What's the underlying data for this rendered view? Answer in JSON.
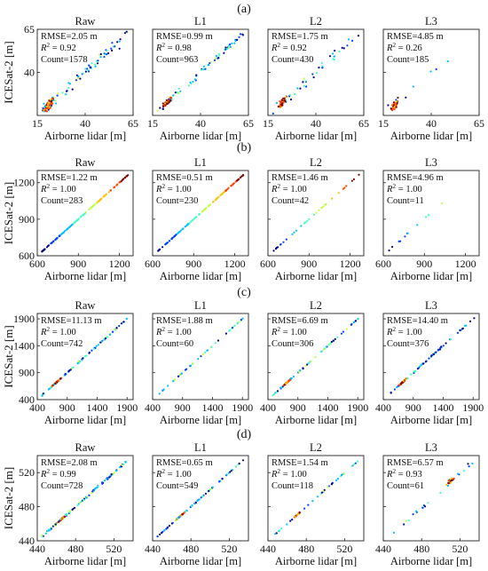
{
  "figure": {
    "rows": [
      {
        "label": "(a)",
        "ylabel": "ICESat-2 [m]",
        "xlabel": "Airborne lidar [m]",
        "xlim": [
          15,
          65
        ],
        "ylim": [
          15,
          65
        ],
        "xticks": [
          "15",
          "40",
          "65"
        ],
        "yticks": [
          "40",
          "65"
        ],
        "panels": [
          {
            "title": "Raw",
            "stats": {
              "rmse": "RMSE=2.05 m",
              "r2_value": " = 0.92",
              "count": "Count=1578"
            }
          },
          {
            "title": "L1",
            "stats": {
              "rmse": "RMSE=0.99 m",
              "r2_value": " = 0.98",
              "count": "Count=963"
            }
          },
          {
            "title": "L2",
            "stats": {
              "rmse": "RMSE=1.75 m",
              "r2_value": " = 0.92",
              "count": "Count=430"
            }
          },
          {
            "title": "L3",
            "stats": {
              "rmse": "RMSE=4.85 m",
              "r2_value": " = 0.26",
              "count": "Count=185"
            }
          }
        ]
      },
      {
        "label": "(b)",
        "ylabel": "ICESat-2 [m]",
        "xlabel": "Airborne lidar [m]",
        "xlim": [
          600,
          1300
        ],
        "ylim": [
          600,
          1300
        ],
        "xticks": [
          "600",
          "900",
          "1200"
        ],
        "yticks": [
          "600",
          "900",
          "1200"
        ],
        "panels": [
          {
            "title": "Raw",
            "stats": {
              "rmse": "RMSE=1.22 m",
              "r2_value": " = 1.00",
              "count": "Count=283"
            }
          },
          {
            "title": "L1",
            "stats": {
              "rmse": "RMSE=0.51 m",
              "r2_value": " = 1.00",
              "count": "Count=230"
            }
          },
          {
            "title": "L2",
            "stats": {
              "rmse": "RMSE=1.46 m",
              "r2_value": " = 1.00",
              "count": "Count=42"
            }
          },
          {
            "title": "L3",
            "stats": {
              "rmse": "RMSE=4.96 m",
              "r2_value": " = 1.00",
              "count": "Count=11"
            }
          }
        ]
      },
      {
        "label": "(c)",
        "ylabel": "ICESat-2 [m]",
        "xlabel": "Airborne lidar [m]",
        "xlim": [
          400,
          2000
        ],
        "ylim": [
          400,
          2000
        ],
        "xticks": [
          "400",
          "900",
          "1400",
          "1900"
        ],
        "yticks": [
          "400",
          "900",
          "1400",
          "1900"
        ],
        "panels": [
          {
            "title": "Raw",
            "stats": {
              "rmse": "RMSE=11.13 m",
              "r2_value": " = 1.00",
              "count": "Count=742"
            }
          },
          {
            "title": "L1",
            "stats": {
              "rmse": "RMSE=1.88 m",
              "r2_value": " = 1.00",
              "count": "Count=60"
            }
          },
          {
            "title": "L2",
            "stats": {
              "rmse": "RMSE=6.69 m",
              "r2_value": " = 1.00",
              "count": "Count=306"
            }
          },
          {
            "title": "L3",
            "stats": {
              "rmse": "RMSE=14.40 m",
              "r2_value": " = 1.00",
              "count": "Count=376"
            }
          }
        ]
      },
      {
        "label": "(d)",
        "ylabel": "ICESat-2 [m]",
        "xlabel": "Airborne lidar [m]",
        "xlim": [
          440,
          540
        ],
        "ylim": [
          440,
          540
        ],
        "xticks": [
          "440",
          "480",
          "520"
        ],
        "yticks": [
          "440",
          "480",
          "520"
        ],
        "panels": [
          {
            "title": "Raw",
            "stats": {
              "rmse": "RMSE=2.08 m",
              "r2_value": " = 0.99",
              "count": "Count=728"
            }
          },
          {
            "title": "L1",
            "stats": {
              "rmse": "RMSE=0.65 m",
              "r2_value": " = 1.00",
              "count": "Count=549"
            }
          },
          {
            "title": "L2",
            "stats": {
              "rmse": "RMSE=1.54 m",
              "r2_value": " = 1.00",
              "count": "Count=118"
            }
          },
          {
            "title": "L3",
            "stats": {
              "rmse": "RMSE=6.57 m",
              "r2_value": " = 0.93",
              "count": "Count=61"
            }
          }
        ]
      }
    ],
    "r2_symbol": "R",
    "r2_superscript": "2",
    "density_colors": [
      "#00008f",
      "#0040ff",
      "#00c0ff",
      "#40ffbf",
      "#c0ff40",
      "#ffbf00",
      "#ff4000",
      "#800000"
    ]
  },
  "chart_data": {
    "type": "scatter",
    "note_level": "density-colored scatter, ICESat-2 vs airborne lidar elevations",
    "x_label": "Airborne lidar [m]",
    "y_label": "ICESat-2 [m]",
    "grid": false,
    "panels_per_row": [
      "Raw",
      "L1",
      "L2",
      "L3"
    ]
  }
}
